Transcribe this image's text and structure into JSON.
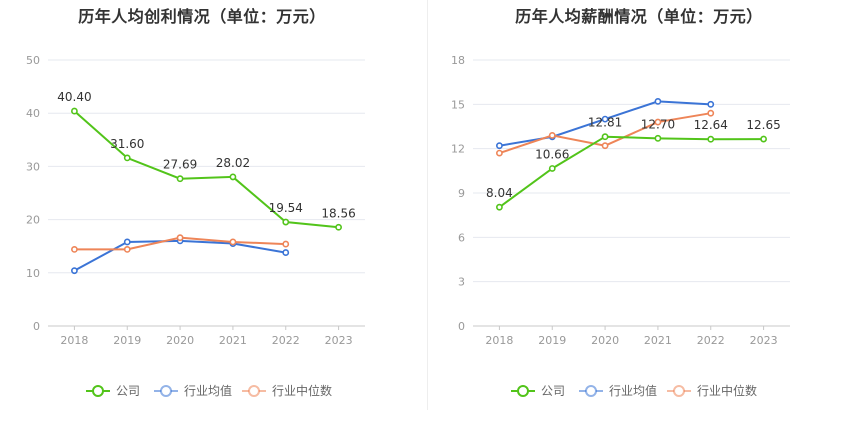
{
  "chart_data": [
    {
      "type": "line",
      "title": "历年人均创利情况（单位：万元）",
      "categories": [
        "2018",
        "2019",
        "2020",
        "2021",
        "2022",
        "2023"
      ],
      "ylim": [
        0,
        50
      ],
      "yticks": [
        "0",
        "10",
        "20",
        "30",
        "40",
        "50"
      ],
      "grid": true,
      "legend_position": "bottom",
      "series": [
        {
          "name": "公司",
          "color": "#52c41a",
          "values": [
            40.4,
            31.6,
            27.69,
            28.02,
            19.54,
            18.56
          ],
          "labels": [
            "40.40",
            "31.60",
            "27.69",
            "28.02",
            "19.54",
            "18.56"
          ]
        },
        {
          "name": "行业均值",
          "color": "#3b74d6",
          "values": [
            10.4,
            15.8,
            16.0,
            15.5,
            13.8,
            null
          ]
        },
        {
          "name": "行业中位数",
          "color": "#ee8558",
          "values": [
            14.4,
            14.4,
            16.6,
            15.8,
            15.4,
            null
          ]
        }
      ]
    },
    {
      "type": "line",
      "title": "历年人均薪酬情况（单位：万元）",
      "categories": [
        "2018",
        "2019",
        "2020",
        "2021",
        "2022",
        "2023"
      ],
      "ylim": [
        0,
        18
      ],
      "yticks": [
        "0",
        "3",
        "6",
        "9",
        "12",
        "15",
        "18"
      ],
      "grid": true,
      "legend_position": "bottom",
      "series": [
        {
          "name": "公司",
          "color": "#52c41a",
          "values": [
            8.04,
            10.66,
            12.81,
            12.7,
            12.64,
            12.65
          ],
          "labels": [
            "8.04",
            "10.66",
            "12.81",
            "12.70",
            "12.64",
            "12.65"
          ]
        },
        {
          "name": "行业均值",
          "color": "#3b74d6",
          "values": [
            12.2,
            12.8,
            14.0,
            15.2,
            15.0,
            null
          ]
        },
        {
          "name": "行业中位数",
          "color": "#ee8558",
          "values": [
            11.7,
            12.9,
            12.2,
            13.8,
            14.4,
            null
          ]
        }
      ]
    }
  ]
}
